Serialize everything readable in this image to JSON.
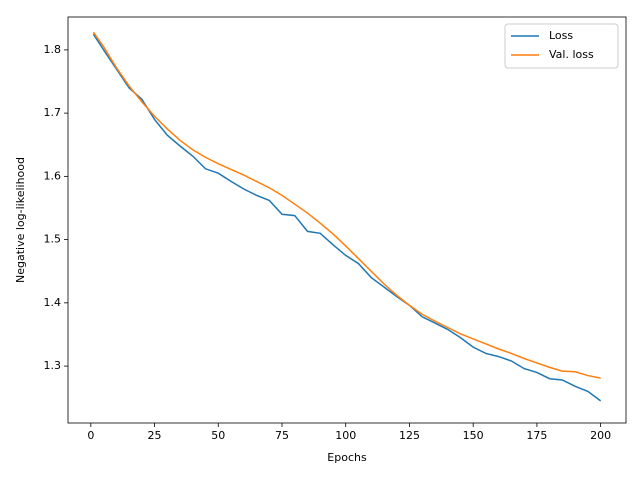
{
  "chart_data": {
    "type": "line",
    "xlabel": "Epochs",
    "ylabel": "Negative log-likelihood",
    "x": [
      1,
      5,
      10,
      15,
      20,
      25,
      30,
      35,
      40,
      45,
      50,
      55,
      60,
      65,
      70,
      75,
      80,
      85,
      90,
      95,
      100,
      105,
      110,
      115,
      120,
      125,
      130,
      135,
      140,
      145,
      150,
      155,
      160,
      165,
      170,
      175,
      180,
      185,
      190,
      195,
      200
    ],
    "series": [
      {
        "name": "Loss",
        "color": "#1f77b4",
        "values": [
          1.825,
          1.8,
          1.77,
          1.74,
          1.722,
          1.69,
          1.665,
          1.648,
          1.632,
          1.612,
          1.605,
          1.592,
          1.58,
          1.57,
          1.562,
          1.54,
          1.538,
          1.513,
          1.51,
          1.492,
          1.475,
          1.462,
          1.44,
          1.425,
          1.41,
          1.396,
          1.378,
          1.368,
          1.358,
          1.345,
          1.33,
          1.32,
          1.315,
          1.308,
          1.296,
          1.29,
          1.28,
          1.278,
          1.268,
          1.26,
          1.245
        ]
      },
      {
        "name": "Val. loss",
        "color": "#ff7f0e",
        "values": [
          1.828,
          1.805,
          1.772,
          1.743,
          1.718,
          1.695,
          1.675,
          1.657,
          1.642,
          1.63,
          1.62,
          1.611,
          1.602,
          1.592,
          1.582,
          1.57,
          1.556,
          1.542,
          1.526,
          1.509,
          1.49,
          1.47,
          1.45,
          1.43,
          1.412,
          1.396,
          1.382,
          1.371,
          1.361,
          1.351,
          1.343,
          1.335,
          1.327,
          1.32,
          1.312,
          1.305,
          1.298,
          1.292,
          1.291,
          1.285,
          1.281
        ]
      }
    ],
    "xlim": [
      -8.95,
      209.95
    ],
    "xticks": [
      0,
      25,
      50,
      75,
      100,
      125,
      150,
      175,
      200
    ],
    "ylim": [
      1.21,
      1.852
    ],
    "yticks": [
      1.3,
      1.4,
      1.5,
      1.6,
      1.7,
      1.8
    ],
    "legend": "upper right"
  }
}
